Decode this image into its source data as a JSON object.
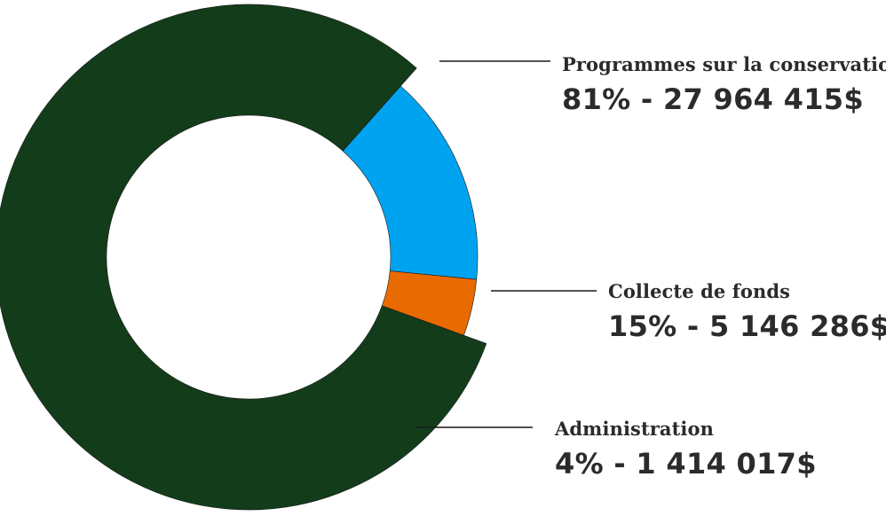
{
  "chart_data": {
    "type": "pie",
    "donut": true,
    "legend": "callouts-right",
    "slices": [
      {
        "label": "Programmes sur la conservation",
        "percent": 81,
        "amount": "27 964 415$",
        "value_text": "81% - 27 964 415$",
        "color": "#123c1a"
      },
      {
        "label": "Collecte de fonds",
        "percent": 15,
        "amount": "5 146 286$",
        "value_text": "15% - 5 146 286$",
        "color": "#00a3f0"
      },
      {
        "label": "Administration",
        "percent": 4,
        "amount": "1 414 017$",
        "value_text": "4% - 1 414 017$",
        "color": "#e86a00"
      }
    ]
  }
}
